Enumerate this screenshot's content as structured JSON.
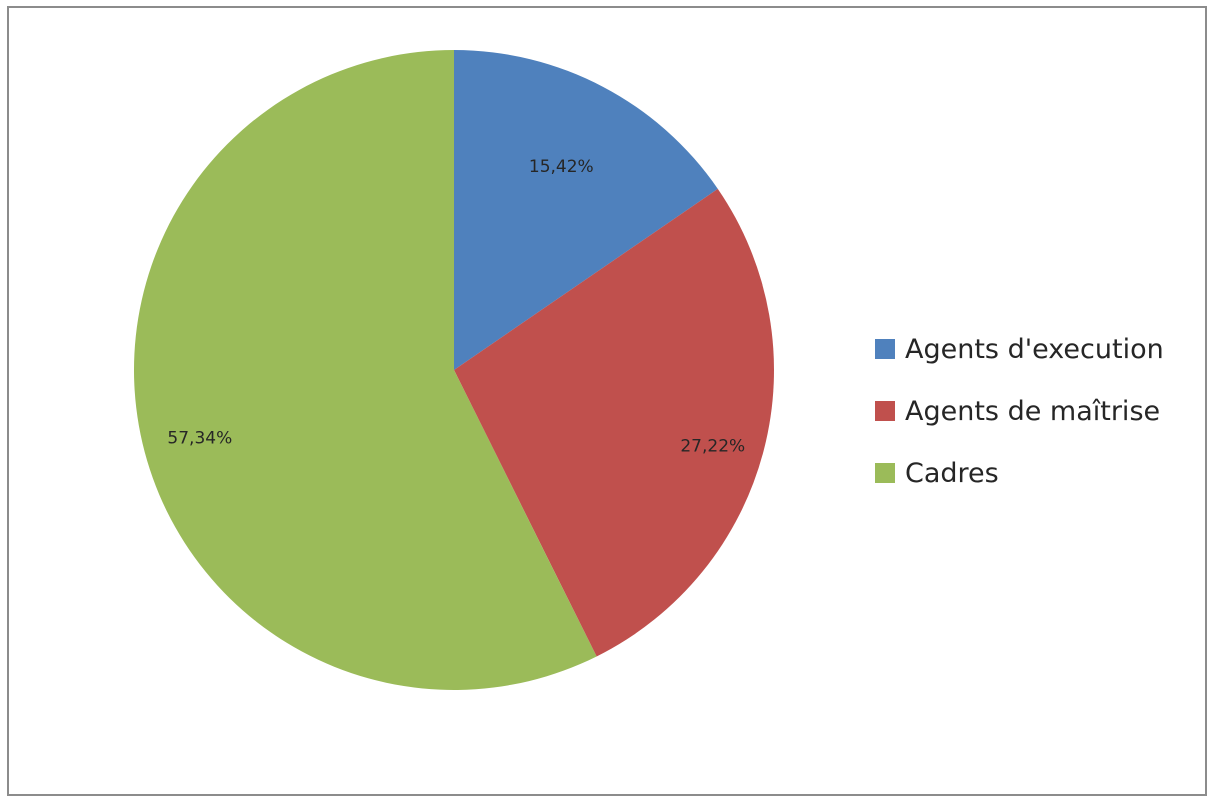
{
  "chart_data": {
    "type": "pie",
    "title": "",
    "legend_position": "right",
    "slices": [
      {
        "name": "Agents d'execution",
        "value": 15.42,
        "label": "15,42%",
        "color": "#4f81bd"
      },
      {
        "name": "Agents de maîtrise",
        "value": 27.22,
        "label": "27,22%",
        "color": "#c0504d"
      },
      {
        "name": "Cadres",
        "value": 57.34,
        "label": "57,34%",
        "color": "#9bbb59"
      }
    ]
  }
}
